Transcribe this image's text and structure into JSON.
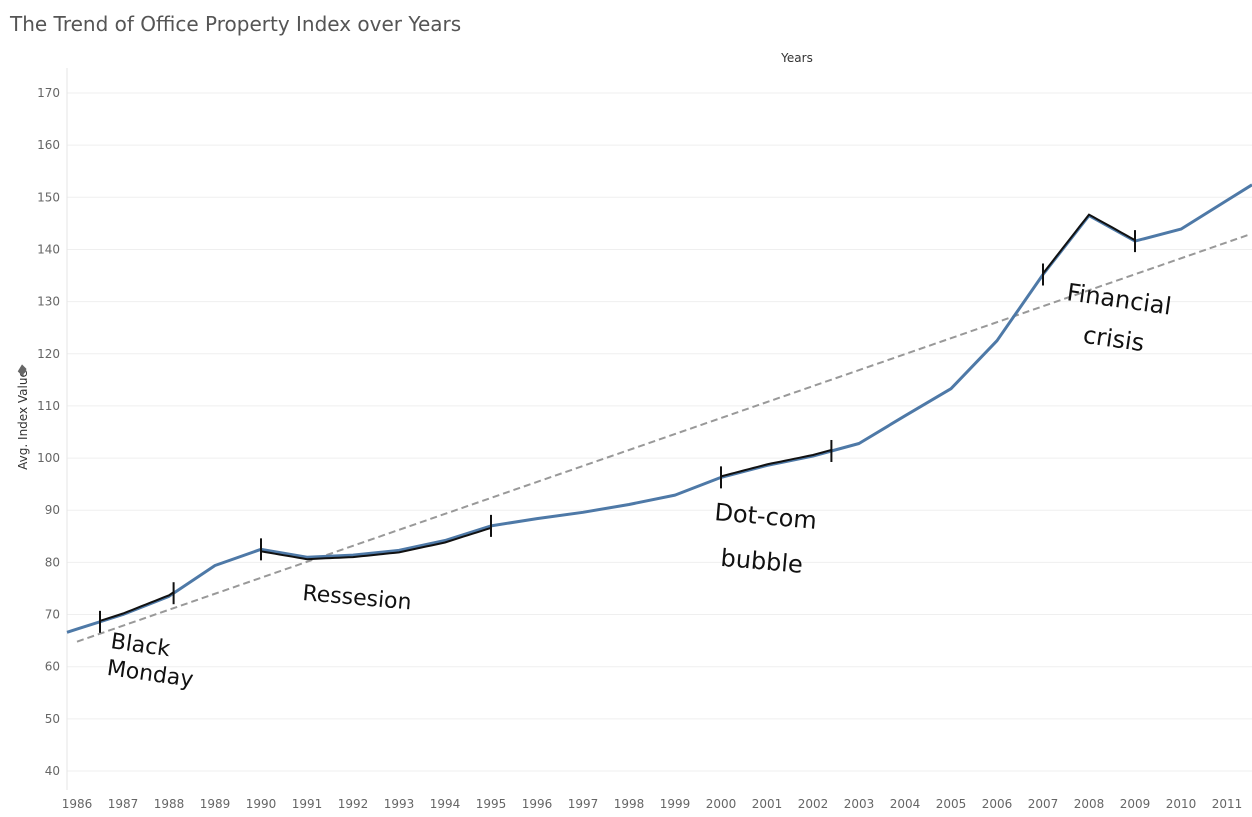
{
  "title": "The Trend of Office Property Index over Years",
  "chart_data": {
    "type": "line",
    "title": "The Trend of Office Property Index over Years",
    "xlabel": "Years",
    "ylabel": "Avg. Index Value",
    "xlim": [
      1986,
      2011.5
    ],
    "ylim": [
      37,
      173
    ],
    "yticks": [
      40,
      50,
      60,
      70,
      80,
      90,
      100,
      110,
      120,
      130,
      140,
      150,
      160,
      170
    ],
    "x": [
      1986,
      1987,
      1988,
      1989,
      1990,
      1991,
      1992,
      1993,
      1994,
      1995,
      1996,
      1997,
      1998,
      1999,
      2000,
      2001,
      2002,
      2003,
      2004,
      2005,
      2006,
      2007,
      2008,
      2009,
      2010,
      2011
    ],
    "xtick_labels": [
      "1986",
      "1987",
      "1988",
      "1989",
      "1990",
      "1991",
      "1992",
      "1993",
      "1994",
      "1995",
      "1996",
      "1997",
      "1998",
      "1999",
      "2000",
      "2001",
      "2002",
      "2003",
      "2004",
      "2005",
      "2006",
      "2007",
      "2008",
      "2009",
      "2010",
      "2011"
    ],
    "series": [
      {
        "color": "#4e79a7",
        "values": [
          67.2,
          70.0,
          73.5,
          79.4,
          82.5,
          81.0,
          81.4,
          82.3,
          84.2,
          87.0,
          88.4,
          89.6,
          91.1,
          92.9,
          96.3,
          98.6,
          100.4,
          102.8,
          108.1,
          113.3,
          122.5,
          135.2,
          146.5,
          141.6,
          143.9,
          149.4
        ]
      }
    ],
    "trend_line": {
      "color": "#999999",
      "style": "dashed",
      "x": [
        1986,
        2011.5
      ],
      "y": [
        64.8,
        142.9
      ]
    },
    "grid": true,
    "annotations": [
      {
        "text": "Black Monday",
        "x_start": 1986.5,
        "x_end": 1988.1
      },
      {
        "text": "Ressesion",
        "x_start": 1990,
        "x_end": 1995
      },
      {
        "text": "Dot-com bubble",
        "x_start": 2000,
        "x_end": 2002.4
      },
      {
        "text": "Financial crisis",
        "x_start": 2007,
        "x_end": 2009
      }
    ]
  }
}
